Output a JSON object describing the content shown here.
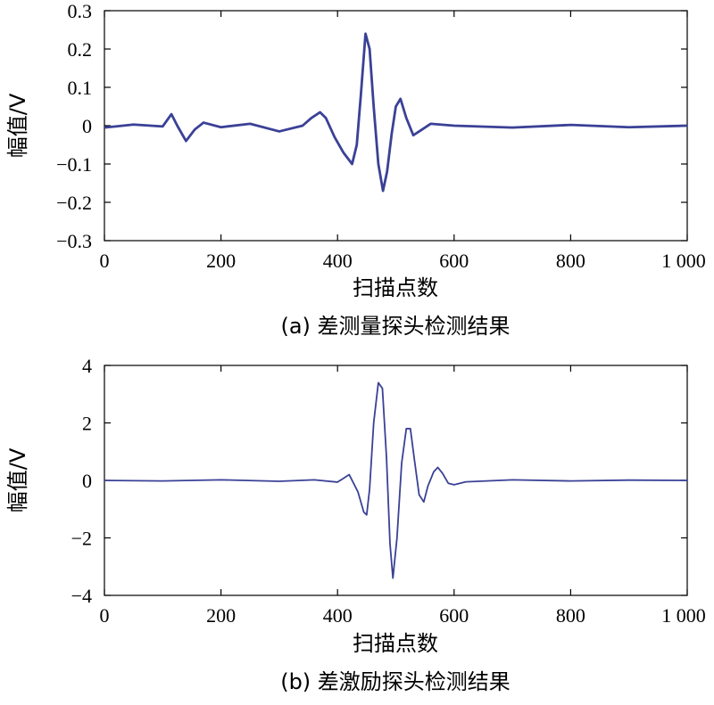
{
  "chart_data": [
    {
      "type": "line",
      "caption": "(a) 差测量探头检测结果",
      "xlabel": "扫描点数",
      "ylabel": "幅值/V",
      "xlim": [
        0,
        1000
      ],
      "ylim": [
        -0.3,
        0.3
      ],
      "x_ticks": [
        0,
        200,
        400,
        600,
        800,
        1000
      ],
      "x_tick_labels": [
        "0",
        "200",
        "400",
        "600",
        "800",
        "1 000"
      ],
      "y_ticks": [
        -0.3,
        -0.2,
        -0.1,
        0,
        0.1,
        0.2,
        0.3
      ],
      "y_tick_labels": [
        "−0.3",
        "−0.2",
        "−0.1",
        "0",
        "0.1",
        "0.2",
        "0.3"
      ],
      "line_color": "#3a4196",
      "series": [
        {
          "x": [
            0,
            50,
            100,
            115,
            125,
            140,
            155,
            170,
            200,
            250,
            300,
            340,
            355,
            370,
            380,
            395,
            410,
            425,
            433,
            440,
            448,
            455,
            462,
            470,
            478,
            485,
            493,
            500,
            508,
            518,
            530,
            545,
            560,
            600,
            700,
            800,
            900,
            1000
          ],
          "y": [
            -0.005,
            0.003,
            -0.002,
            0.03,
            0.0,
            -0.04,
            -0.01,
            0.008,
            -0.004,
            0.005,
            -0.015,
            0.0,
            0.02,
            0.035,
            0.02,
            -0.03,
            -0.07,
            -0.1,
            -0.05,
            0.08,
            0.24,
            0.2,
            0.05,
            -0.1,
            -0.17,
            -0.12,
            -0.02,
            0.05,
            0.07,
            0.02,
            -0.025,
            -0.01,
            0.005,
            0.0,
            -0.005,
            0.002,
            -0.004,
            0.0
          ]
        }
      ]
    },
    {
      "type": "line",
      "caption": "(b) 差激励探头检测结果",
      "xlabel": "扫描点数",
      "ylabel": "幅值/V",
      "xlim": [
        0,
        1000
      ],
      "ylim": [
        -4,
        4
      ],
      "x_ticks": [
        0,
        200,
        400,
        600,
        800,
        1000
      ],
      "x_tick_labels": [
        "0",
        "200",
        "400",
        "600",
        "800",
        "1 000"
      ],
      "y_ticks": [
        -4,
        -2,
        0,
        2,
        4
      ],
      "y_tick_labels": [
        "−4",
        "−2",
        "0",
        "2",
        "4"
      ],
      "line_color": "#3a4196",
      "series": [
        {
          "x": [
            0,
            100,
            200,
            300,
            360,
            400,
            420,
            435,
            445,
            450,
            455,
            462,
            470,
            477,
            484,
            490,
            495,
            502,
            510,
            518,
            525,
            532,
            540,
            548,
            555,
            565,
            572,
            580,
            590,
            600,
            620,
            700,
            800,
            900,
            1000
          ],
          "y": [
            0,
            -0.02,
            0.02,
            -0.03,
            0.02,
            -0.06,
            0.2,
            -0.4,
            -1.1,
            -1.2,
            -0.3,
            2.0,
            3.4,
            3.2,
            0.8,
            -2.2,
            -3.4,
            -2.0,
            0.6,
            1.8,
            1.8,
            0.7,
            -0.5,
            -0.75,
            -0.2,
            0.3,
            0.45,
            0.25,
            -0.1,
            -0.15,
            -0.05,
            0.02,
            -0.02,
            0.01,
            0
          ]
        }
      ]
    }
  ]
}
